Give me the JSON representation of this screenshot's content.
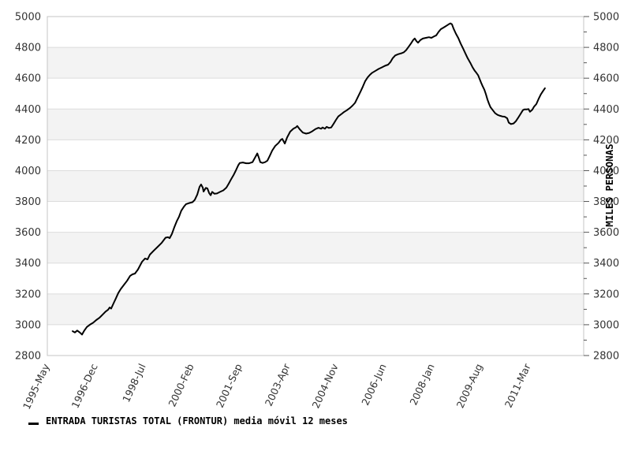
{
  "page": {
    "background": "#ffffff"
  },
  "legend": {
    "marker": "line-dash",
    "label": "ENTRADA TURISTAS TOTAL (FRONTUR) media móvil 12 meses"
  },
  "chart_data": {
    "type": "line",
    "title": "",
    "ylabel_right": "MILES PERSONAS",
    "xlabel": "",
    "grid": "horizontal-bands",
    "legend_position": "bottom-left",
    "y_axis": {
      "min": 2800,
      "max": 5000,
      "major_step": 200,
      "minor_step": 100,
      "tick_labels": [
        "5000",
        "4800",
        "4600",
        "4400",
        "4200",
        "4000",
        "3800",
        "3600",
        "3400",
        "3200",
        "3000",
        "2800"
      ],
      "labels_on": "both-sides",
      "tick_marks_on": "right"
    },
    "x_axis": {
      "start": "1995-May",
      "unit": "months since 1995-May",
      "tick_months": [
        0,
        19,
        38,
        57,
        76,
        95,
        114,
        133,
        152,
        171,
        190
      ],
      "tick_labels": [
        "1995-May",
        "1996-Dec",
        "1998-Jul",
        "2000-Feb",
        "2001-Sep",
        "2003-Apr",
        "2004-Nov",
        "2006-Jun",
        "2008-Jan",
        "2009-Aug",
        "2011-Mar"
      ],
      "label_rotation_deg": -65
    },
    "style": {
      "band_color": "#f3f3f3",
      "grid_color": "#dcdcdc",
      "border_color": "#c4c4c4",
      "line_color": "#000000",
      "label_color": "#333333"
    },
    "series": [
      {
        "name": "ENTRADA TURISTAS TOTAL (FRONTUR) media móvil 12 meses",
        "color": "#000000",
        "points": [
          [
            10.0,
            2958
          ],
          [
            10.9,
            2950
          ],
          [
            11.8,
            2962
          ],
          [
            12.8,
            2950
          ],
          [
            13.7,
            2936
          ],
          [
            14.6,
            2962
          ],
          [
            15.6,
            2985
          ],
          [
            16.8,
            3000
          ],
          [
            18.1,
            3013
          ],
          [
            19.3,
            3030
          ],
          [
            20.6,
            3045
          ],
          [
            21.8,
            3065
          ],
          [
            23.0,
            3085
          ],
          [
            24.0,
            3098
          ],
          [
            24.6,
            3112
          ],
          [
            25.2,
            3105
          ],
          [
            26.2,
            3140
          ],
          [
            27.1,
            3172
          ],
          [
            28.0,
            3205
          ],
          [
            29.0,
            3232
          ],
          [
            30.2,
            3258
          ],
          [
            31.5,
            3285
          ],
          [
            32.7,
            3317
          ],
          [
            33.6,
            3327
          ],
          [
            34.6,
            3332
          ],
          [
            35.8,
            3358
          ],
          [
            37.4,
            3409
          ],
          [
            38.6,
            3430
          ],
          [
            39.6,
            3424
          ],
          [
            40.5,
            3455
          ],
          [
            42.0,
            3480
          ],
          [
            43.6,
            3506
          ],
          [
            45.2,
            3532
          ],
          [
            46.7,
            3565
          ],
          [
            47.7,
            3568
          ],
          [
            48.3,
            3562
          ],
          [
            49.2,
            3590
          ],
          [
            50.1,
            3630
          ],
          [
            51.1,
            3672
          ],
          [
            52.0,
            3700
          ],
          [
            52.9,
            3740
          ],
          [
            53.9,
            3765
          ],
          [
            54.8,
            3783
          ],
          [
            56.1,
            3790
          ],
          [
            57.3,
            3795
          ],
          [
            58.2,
            3810
          ],
          [
            59.2,
            3845
          ],
          [
            60.1,
            3895
          ],
          [
            60.7,
            3910
          ],
          [
            61.4,
            3890
          ],
          [
            61.7,
            3864
          ],
          [
            62.6,
            3888
          ],
          [
            63.2,
            3885
          ],
          [
            63.9,
            3854
          ],
          [
            64.5,
            3840
          ],
          [
            65.1,
            3862
          ],
          [
            66.0,
            3850
          ],
          [
            67.0,
            3852
          ],
          [
            68.2,
            3862
          ],
          [
            69.5,
            3872
          ],
          [
            70.7,
            3890
          ],
          [
            71.6,
            3915
          ],
          [
            72.6,
            3945
          ],
          [
            73.5,
            3970
          ],
          [
            74.4,
            4000
          ],
          [
            75.4,
            4035
          ],
          [
            76.0,
            4050
          ],
          [
            77.2,
            4053
          ],
          [
            78.5,
            4048
          ],
          [
            79.7,
            4048
          ],
          [
            81.0,
            4055
          ],
          [
            82.2,
            4090
          ],
          [
            82.9,
            4112
          ],
          [
            83.5,
            4085
          ],
          [
            84.1,
            4055
          ],
          [
            85.0,
            4050
          ],
          [
            86.0,
            4055
          ],
          [
            86.9,
            4065
          ],
          [
            87.8,
            4095
          ],
          [
            88.8,
            4130
          ],
          [
            90.0,
            4160
          ],
          [
            91.3,
            4180
          ],
          [
            92.2,
            4200
          ],
          [
            92.8,
            4206
          ],
          [
            93.8,
            4176
          ],
          [
            94.7,
            4215
          ],
          [
            95.9,
            4253
          ],
          [
            97.2,
            4273
          ],
          [
            98.1,
            4280
          ],
          [
            98.7,
            4290
          ],
          [
            99.7,
            4268
          ],
          [
            100.9,
            4247
          ],
          [
            102.2,
            4240
          ],
          [
            103.4,
            4245
          ],
          [
            104.6,
            4255
          ],
          [
            105.9,
            4270
          ],
          [
            107.1,
            4278
          ],
          [
            108.1,
            4272
          ],
          [
            108.7,
            4280
          ],
          [
            109.6,
            4272
          ],
          [
            110.3,
            4284
          ],
          [
            111.2,
            4277
          ],
          [
            112.1,
            4280
          ],
          [
            113.1,
            4305
          ],
          [
            114.0,
            4330
          ],
          [
            114.9,
            4352
          ],
          [
            116.2,
            4368
          ],
          [
            117.1,
            4380
          ],
          [
            118.3,
            4392
          ],
          [
            119.6,
            4408
          ],
          [
            120.5,
            4422
          ],
          [
            121.5,
            4440
          ],
          [
            122.4,
            4470
          ],
          [
            123.6,
            4510
          ],
          [
            124.6,
            4545
          ],
          [
            125.5,
            4580
          ],
          [
            126.5,
            4605
          ],
          [
            127.4,
            4622
          ],
          [
            128.3,
            4635
          ],
          [
            129.6,
            4648
          ],
          [
            130.8,
            4660
          ],
          [
            132.1,
            4670
          ],
          [
            133.3,
            4680
          ],
          [
            134.6,
            4688
          ],
          [
            135.5,
            4705
          ],
          [
            136.4,
            4730
          ],
          [
            137.4,
            4748
          ],
          [
            138.6,
            4756
          ],
          [
            139.9,
            4762
          ],
          [
            140.8,
            4768
          ],
          [
            141.7,
            4782
          ],
          [
            142.6,
            4802
          ],
          [
            143.6,
            4825
          ],
          [
            144.5,
            4848
          ],
          [
            145.1,
            4858
          ],
          [
            145.8,
            4840
          ],
          [
            146.4,
            4830
          ],
          [
            147.3,
            4847
          ],
          [
            148.3,
            4857
          ],
          [
            149.5,
            4862
          ],
          [
            150.7,
            4866
          ],
          [
            151.7,
            4862
          ],
          [
            152.6,
            4870
          ],
          [
            153.6,
            4878
          ],
          [
            154.5,
            4900
          ],
          [
            155.4,
            4918
          ],
          [
            156.4,
            4928
          ],
          [
            157.0,
            4934
          ],
          [
            157.6,
            4940
          ],
          [
            158.5,
            4950
          ],
          [
            159.2,
            4956
          ],
          [
            159.8,
            4950
          ],
          [
            160.4,
            4922
          ],
          [
            161.3,
            4890
          ],
          [
            162.3,
            4860
          ],
          [
            163.2,
            4825
          ],
          [
            164.2,
            4792
          ],
          [
            165.1,
            4760
          ],
          [
            166.0,
            4730
          ],
          [
            167.0,
            4700
          ],
          [
            167.9,
            4672
          ],
          [
            168.8,
            4648
          ],
          [
            169.4,
            4635
          ],
          [
            170.1,
            4620
          ],
          [
            170.7,
            4596
          ],
          [
            171.3,
            4570
          ],
          [
            171.9,
            4548
          ],
          [
            172.6,
            4525
          ],
          [
            173.2,
            4495
          ],
          [
            173.8,
            4462
          ],
          [
            174.4,
            4435
          ],
          [
            175.0,
            4412
          ],
          [
            176.0,
            4390
          ],
          [
            176.9,
            4372
          ],
          [
            177.8,
            4362
          ],
          [
            178.8,
            4356
          ],
          [
            179.7,
            4352
          ],
          [
            180.6,
            4350
          ],
          [
            181.6,
            4340
          ],
          [
            182.2,
            4312
          ],
          [
            183.1,
            4302
          ],
          [
            184.1,
            4306
          ],
          [
            185.0,
            4320
          ],
          [
            185.9,
            4342
          ],
          [
            186.9,
            4368
          ],
          [
            187.8,
            4392
          ],
          [
            188.4,
            4398
          ],
          [
            189.4,
            4398
          ],
          [
            190.0,
            4400
          ],
          [
            190.6,
            4382
          ],
          [
            191.5,
            4395
          ],
          [
            192.2,
            4415
          ],
          [
            193.1,
            4432
          ],
          [
            194.0,
            4465
          ],
          [
            194.9,
            4495
          ],
          [
            195.9,
            4520
          ],
          [
            196.5,
            4535
          ]
        ]
      }
    ]
  }
}
